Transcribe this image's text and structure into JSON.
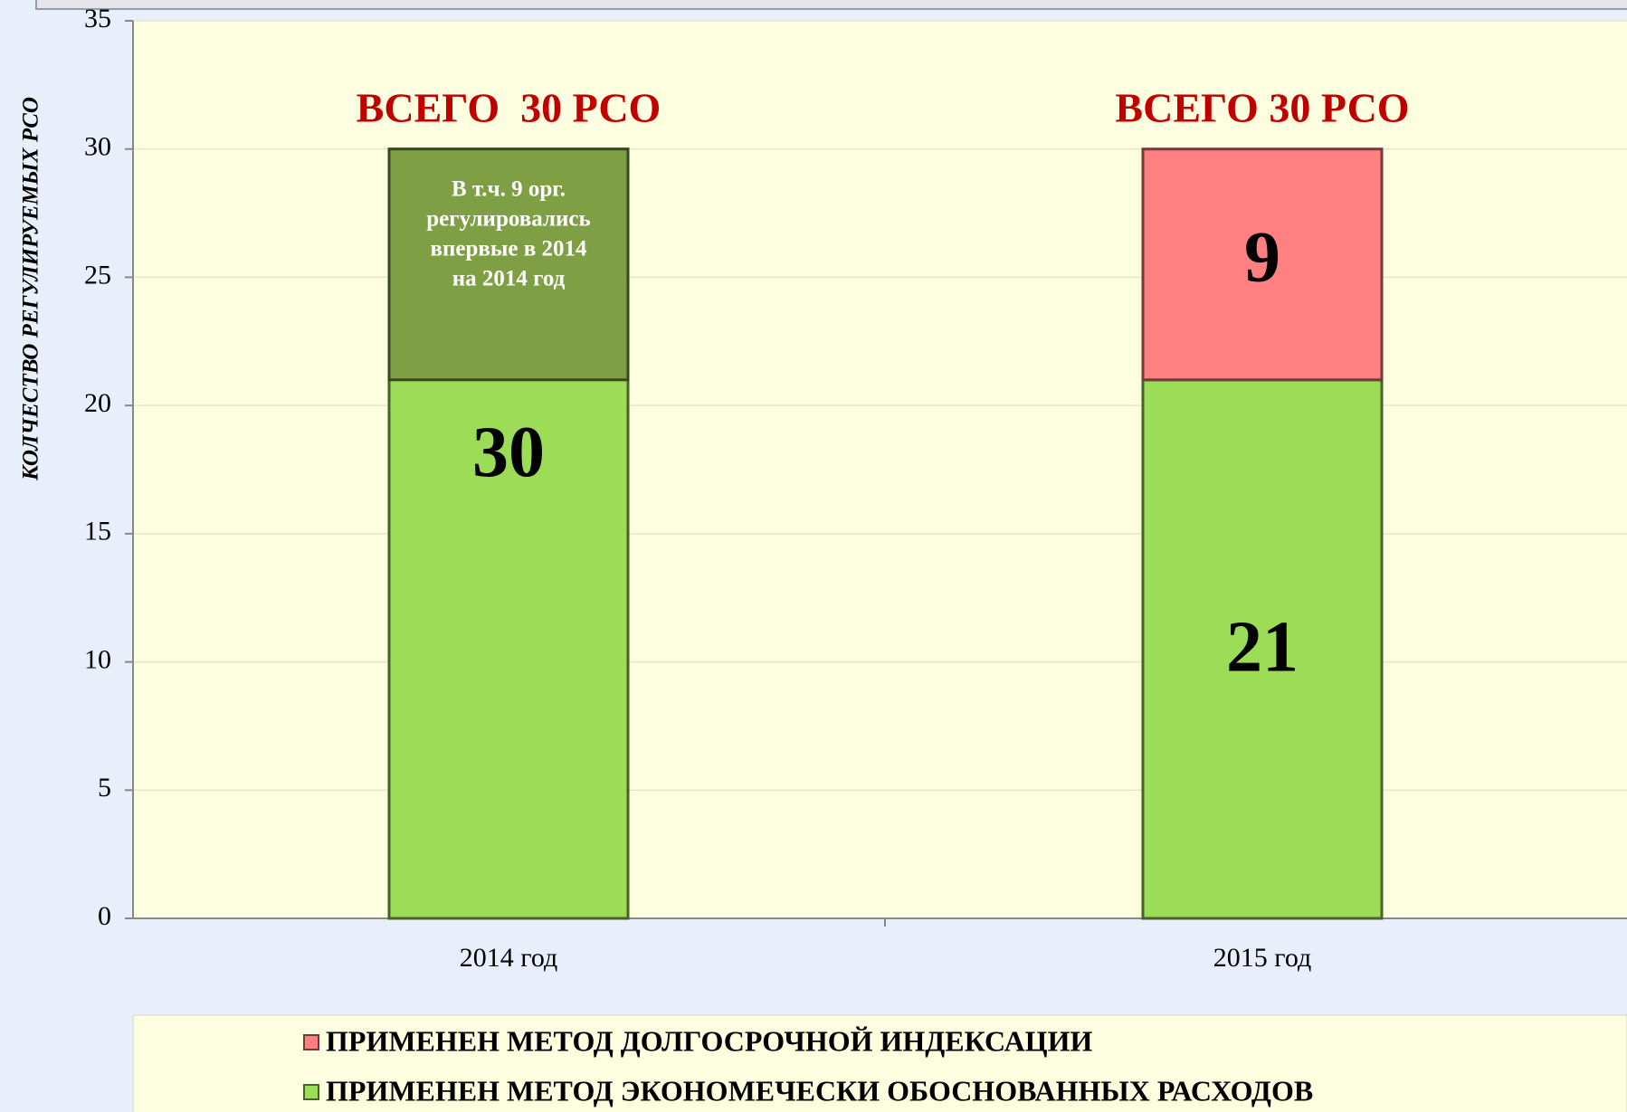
{
  "chart_data": {
    "type": "stacked_bar",
    "y_axis_label": "КОЛЧЕСТВО РЕГУЛИРУЕМЫХ РСО",
    "categories": [
      "2014 год",
      "2015 год"
    ],
    "series": [
      {
        "name": "ПРИМЕНЕН МЕТОД ЭКОНОМЕЧЕСКИ ОБОСНОВАННЫХ РАСХОДОВ",
        "color": "#9ddc56",
        "values": [
          30,
          21
        ]
      },
      {
        "name": "ПРИМЕНЕН МЕТОД ДОЛГОСРОЧНОЙ ИНДЕКСАЦИИ",
        "color": "#ff8080",
        "values": [
          null,
          9
        ]
      }
    ],
    "totals": [
      "ВСЕГО  30 РСО",
      "ВСЕГО 30 РСО"
    ],
    "annotation": {
      "lines": [
        "В т.ч. 9 орг.",
        "регулировались",
        "впервые в 2014",
        "на 2014 год"
      ],
      "value": 9,
      "color": "#7f9f45"
    },
    "ylim": [
      0,
      35
    ],
    "yticks": [
      0,
      5,
      10,
      15,
      20,
      25,
      30,
      35
    ],
    "grid": true
  }
}
